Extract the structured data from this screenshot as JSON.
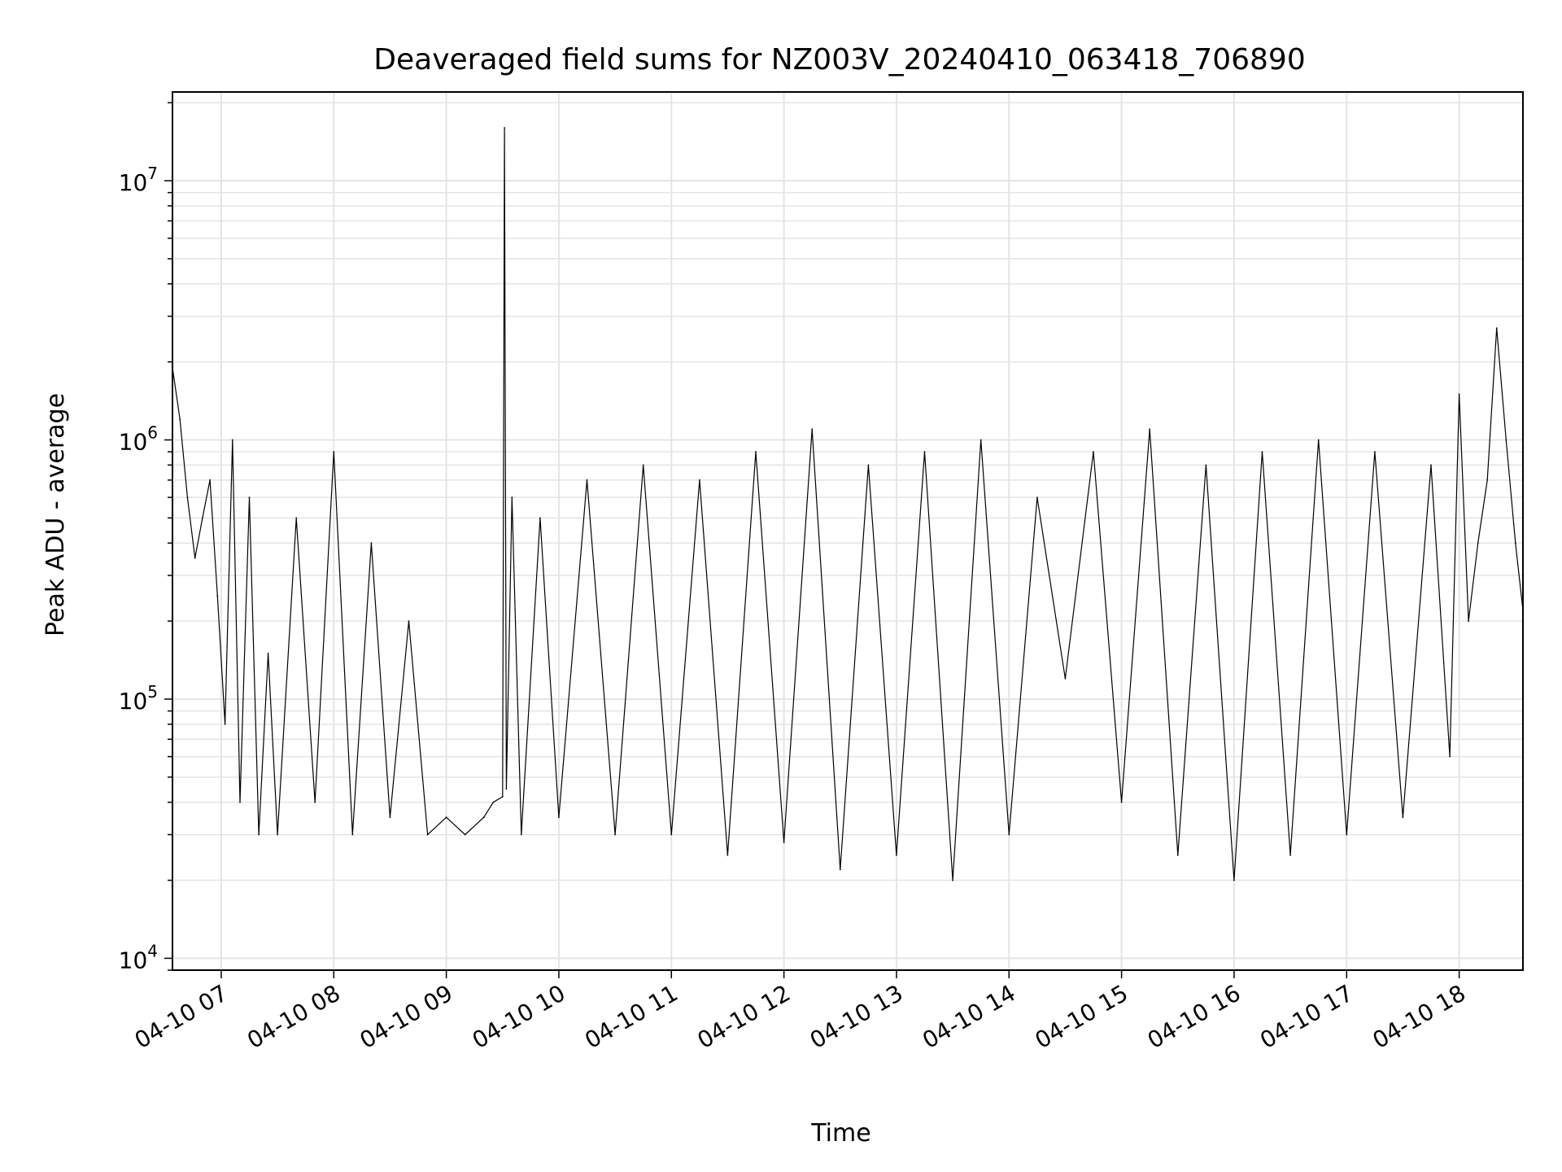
{
  "chart_data": {
    "type": "line",
    "title": "Deaveraged field sums for NZ003V_20240410_063418_706890",
    "xlabel": "Time",
    "ylabel": "Peak ADU - average",
    "yscale": "log",
    "ylim": [
      9000,
      22000000
    ],
    "xlim": [
      "2024-04-10 06:34",
      "2024-04-10 18:34"
    ],
    "grid": true,
    "line_color": "#000000",
    "x_ticks": [
      "2024-04-10 07:00",
      "2024-04-10 08:00",
      "2024-04-10 09:00",
      "2024-04-10 10:00",
      "2024-04-10 11:00",
      "2024-04-10 12:00",
      "2024-04-10 13:00",
      "2024-04-10 14:00",
      "2024-04-10 15:00",
      "2024-04-10 16:00",
      "2024-04-10 17:00",
      "2024-04-10 18:00"
    ],
    "x_tick_labels": [
      "04-10 07",
      "04-10 08",
      "04-10 09",
      "04-10 10",
      "04-10 11",
      "04-10 12",
      "04-10 13",
      "04-10 14",
      "04-10 15",
      "04-10 16",
      "04-10 17",
      "04-10 18"
    ],
    "y_ticks": [
      {
        "value": 10000,
        "base": "10",
        "exp": "4"
      },
      {
        "value": 100000,
        "base": "10",
        "exp": "5"
      },
      {
        "value": 1000000,
        "base": "10",
        "exp": "6"
      },
      {
        "value": 10000000,
        "base": "10",
        "exp": "7"
      }
    ],
    "series": [
      {
        "x": [
          "2024-04-10 06:34",
          "2024-04-10 06:38",
          "2024-04-10 06:42",
          "2024-04-10 06:46",
          "2024-04-10 06:50",
          "2024-04-10 06:54",
          "2024-04-10 06:58",
          "2024-04-10 07:02",
          "2024-04-10 07:06",
          "2024-04-10 07:10",
          "2024-04-10 07:15",
          "2024-04-10 07:20",
          "2024-04-10 07:25",
          "2024-04-10 07:30",
          "2024-04-10 07:40",
          "2024-04-10 07:50",
          "2024-04-10 08:00",
          "2024-04-10 08:10",
          "2024-04-10 08:20",
          "2024-04-10 08:30",
          "2024-04-10 08:40",
          "2024-04-10 08:50",
          "2024-04-10 09:00",
          "2024-04-10 09:10",
          "2024-04-10 09:20",
          "2024-04-10 09:25",
          "2024-04-10 09:30",
          "2024-04-10 09:31",
          "2024-04-10 09:32",
          "2024-04-10 09:35",
          "2024-04-10 09:40",
          "2024-04-10 09:50",
          "2024-04-10 10:00",
          "2024-04-10 10:15",
          "2024-04-10 10:30",
          "2024-04-10 10:45",
          "2024-04-10 11:00",
          "2024-04-10 11:15",
          "2024-04-10 11:30",
          "2024-04-10 11:45",
          "2024-04-10 12:00",
          "2024-04-10 12:15",
          "2024-04-10 12:30",
          "2024-04-10 12:45",
          "2024-04-10 13:00",
          "2024-04-10 13:15",
          "2024-04-10 13:30",
          "2024-04-10 13:45",
          "2024-04-10 14:00",
          "2024-04-10 14:15",
          "2024-04-10 14:30",
          "2024-04-10 14:45",
          "2024-04-10 15:00",
          "2024-04-10 15:15",
          "2024-04-10 15:30",
          "2024-04-10 15:45",
          "2024-04-10 16:00",
          "2024-04-10 16:15",
          "2024-04-10 16:30",
          "2024-04-10 16:45",
          "2024-04-10 17:00",
          "2024-04-10 17:15",
          "2024-04-10 17:30",
          "2024-04-10 17:45",
          "2024-04-10 17:55",
          "2024-04-10 18:00",
          "2024-04-10 18:05",
          "2024-04-10 18:10",
          "2024-04-10 18:15",
          "2024-04-10 18:20",
          "2024-04-10 18:25",
          "2024-04-10 18:30",
          "2024-04-10 18:34"
        ],
        "y": [
          1900000,
          1200000,
          600000,
          350000,
          500000,
          700000,
          250000,
          80000,
          1000000,
          40000,
          600000,
          30000,
          150000,
          30000,
          500000,
          40000,
          900000,
          30000,
          400000,
          35000,
          200000,
          30000,
          35000,
          30000,
          35000,
          40000,
          42000,
          16000000,
          45000,
          600000,
          30000,
          500000,
          35000,
          700000,
          30000,
          800000,
          30000,
          700000,
          25000,
          900000,
          28000,
          1100000,
          22000,
          800000,
          25000,
          900000,
          20000,
          1000000,
          30000,
          600000,
          120000,
          900000,
          40000,
          1100000,
          25000,
          800000,
          20000,
          900000,
          25000,
          1000000,
          30000,
          900000,
          35000,
          800000,
          60000,
          1500000,
          200000,
          400000,
          700000,
          2700000,
          1000000,
          400000,
          220000
        ]
      }
    ]
  }
}
